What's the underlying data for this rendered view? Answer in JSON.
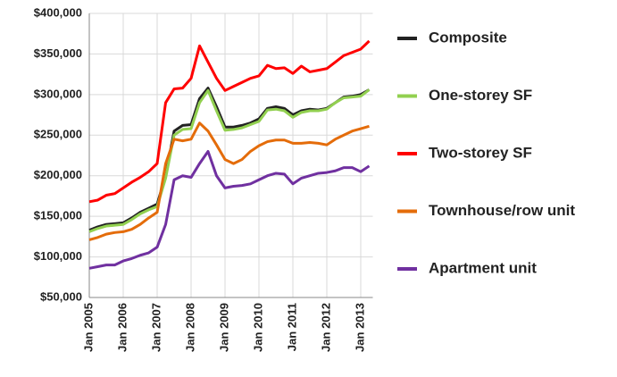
{
  "chart_data": {
    "type": "line",
    "x": [
      "Jan 2005",
      "Apr 2005",
      "Jul 2005",
      "Oct 2005",
      "Jan 2006",
      "Apr 2006",
      "Jul 2006",
      "Oct 2006",
      "Jan 2007",
      "Apr 2007",
      "Jul 2007",
      "Oct 2007",
      "Jan 2008",
      "Apr 2008",
      "Jul 2008",
      "Oct 2008",
      "Jan 2009",
      "Apr 2009",
      "Jul 2009",
      "Oct 2009",
      "Jan 2010",
      "Apr 2010",
      "Jul 2010",
      "Oct 2010",
      "Jan 2011",
      "Apr 2011",
      "Jul 2011",
      "Oct 2011",
      "Jan 2012",
      "Apr 2012",
      "Jul 2012",
      "Oct 2012",
      "Jan 2013",
      "Apr 2013"
    ],
    "xticks": [
      "Jan 2005",
      "Jan 2006",
      "Jan 2007",
      "Jan 2008",
      "Jan 2009",
      "Jan 2010",
      "Jan 2011",
      "Jan 2012",
      "Jan 2013"
    ],
    "ylim": [
      50000,
      400000
    ],
    "yticks": [
      {
        "value": 50000,
        "label": "$50,000"
      },
      {
        "value": 100000,
        "label": "$100,000"
      },
      {
        "value": 150000,
        "label": "$150,000"
      },
      {
        "value": 200000,
        "label": "$200,000"
      },
      {
        "value": 250000,
        "label": "$250,000"
      },
      {
        "value": 300000,
        "label": "$300,000"
      },
      {
        "value": 350000,
        "label": "$350,000"
      },
      {
        "value": 400000,
        "label": "$400,000"
      }
    ],
    "grid": true,
    "series": [
      {
        "name": "Composite",
        "color": "#222222",
        "values": [
          133000,
          137000,
          140000,
          141000,
          142000,
          148000,
          155000,
          160000,
          165000,
          200000,
          255000,
          262000,
          263000,
          295000,
          308000,
          285000,
          260000,
          260000,
          262000,
          265000,
          270000,
          283000,
          285000,
          283000,
          275000,
          280000,
          282000,
          281000,
          283000,
          290000,
          297000,
          298000,
          300000,
          306000
        ]
      },
      {
        "name": "One-storey SF",
        "color": "#92d050",
        "values": [
          131000,
          135000,
          138000,
          139000,
          140000,
          146000,
          153000,
          158000,
          162000,
          197000,
          250000,
          257000,
          258000,
          290000,
          305000,
          280000,
          256000,
          257000,
          259000,
          263000,
          267000,
          281000,
          282000,
          280000,
          272000,
          278000,
          280000,
          280000,
          282000,
          290000,
          296000,
          297000,
          298000,
          306000
        ]
      },
      {
        "name": "Two-storey SF",
        "color": "#ff0000",
        "values": [
          168000,
          170000,
          176000,
          178000,
          185000,
          192000,
          198000,
          205000,
          215000,
          290000,
          307000,
          308000,
          320000,
          360000,
          340000,
          320000,
          305000,
          310000,
          315000,
          320000,
          323000,
          336000,
          332000,
          333000,
          326000,
          335000,
          328000,
          330000,
          332000,
          340000,
          348000,
          352000,
          356000,
          366000
        ]
      },
      {
        "name": "Townhouse/row unit",
        "color": "#e46c0a",
        "values": [
          121000,
          124000,
          128000,
          130000,
          131000,
          134000,
          140000,
          148000,
          155000,
          215000,
          245000,
          243000,
          245000,
          265000,
          255000,
          238000,
          220000,
          215000,
          220000,
          230000,
          237000,
          242000,
          244000,
          244000,
          240000,
          240000,
          241000,
          240000,
          238000,
          245000,
          250000,
          255000,
          258000,
          261000
        ]
      },
      {
        "name": "Apartment unit",
        "color": "#7030a0",
        "values": [
          86000,
          88000,
          90000,
          90000,
          95000,
          98000,
          102000,
          105000,
          112000,
          140000,
          195000,
          200000,
          198000,
          215000,
          230000,
          200000,
          185000,
          187000,
          188000,
          190000,
          195000,
          200000,
          203000,
          202000,
          190000,
          197000,
          200000,
          203000,
          204000,
          206000,
          210000,
          210000,
          205000,
          212000
        ]
      }
    ]
  }
}
